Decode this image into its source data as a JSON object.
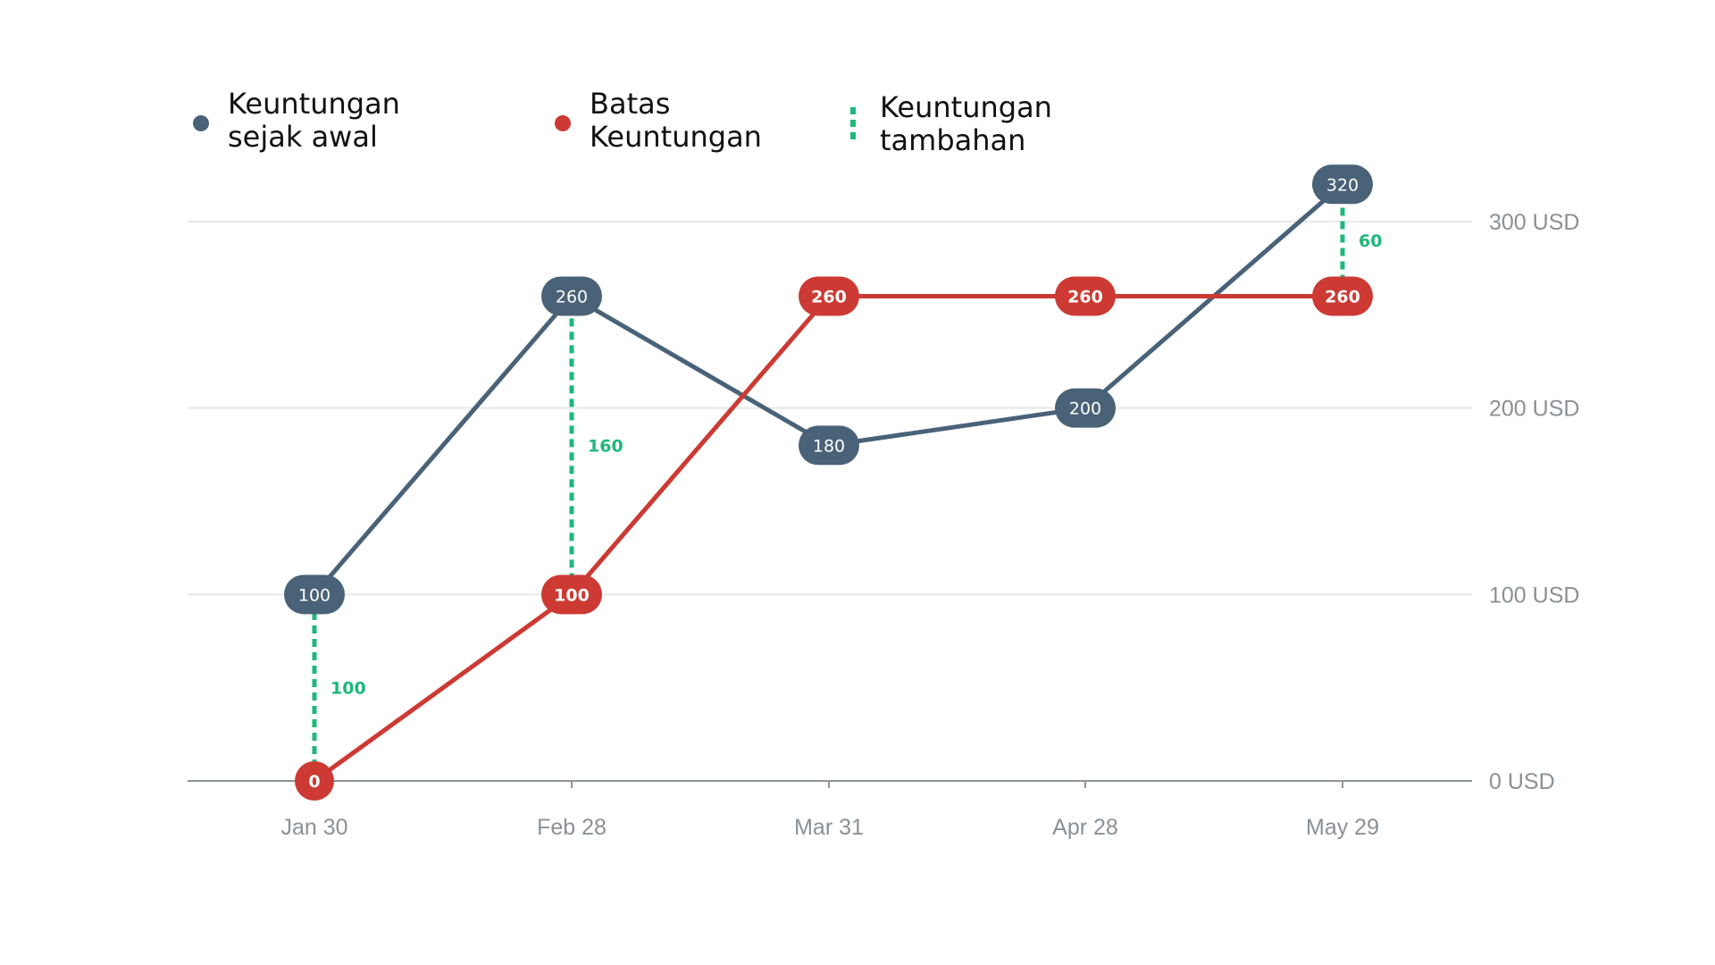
{
  "chart_data": {
    "type": "line",
    "categories": [
      "Jan 30",
      "Feb 28",
      "Mar 31",
      "Apr 28",
      "May 29"
    ],
    "series": [
      {
        "name": "Keuntungan sejak awal",
        "values": [
          100,
          260,
          180,
          200,
          320
        ],
        "color": "#4a6278"
      },
      {
        "name": "Batas Keuntungan",
        "values": [
          0,
          100,
          260,
          260,
          260
        ],
        "color": "#cc3a33"
      }
    ],
    "gaps": {
      "name": "Keuntungan tambahan",
      "color": "#1fb87a",
      "items": [
        {
          "category": "Jan 30",
          "from": 0,
          "to": 100,
          "label": "100"
        },
        {
          "category": "Feb 28",
          "from": 100,
          "to": 260,
          "label": "160"
        },
        {
          "category": "May 29",
          "from": 260,
          "to": 320,
          "label": "60"
        }
      ]
    },
    "legend": {
      "placement": "top-left",
      "items": [
        {
          "line1": "Keuntungan",
          "line2": "sejak awal",
          "color": "#4a6278",
          "marker": "dot"
        },
        {
          "line1": "Batas",
          "line2": "Keuntungan",
          "color": "#cc3a33",
          "marker": "dot"
        },
        {
          "line1": "Keuntungan",
          "line2": "tambahan",
          "color": "#1fb87a",
          "marker": "dashed-line"
        }
      ]
    },
    "y_axis": {
      "position": "right",
      "ticks": [
        0,
        100,
        200,
        300
      ],
      "tick_labels": [
        "0 USD",
        "100 USD",
        "200 USD",
        "300 USD"
      ],
      "ylim": [
        0,
        300
      ],
      "grid": true
    },
    "x_axis": {
      "tick_labels": [
        "Jan 30",
        "Feb 28",
        "Mar 31",
        "Apr 28",
        "May 29"
      ]
    },
    "title": "",
    "xlabel": "",
    "ylabel": ""
  }
}
